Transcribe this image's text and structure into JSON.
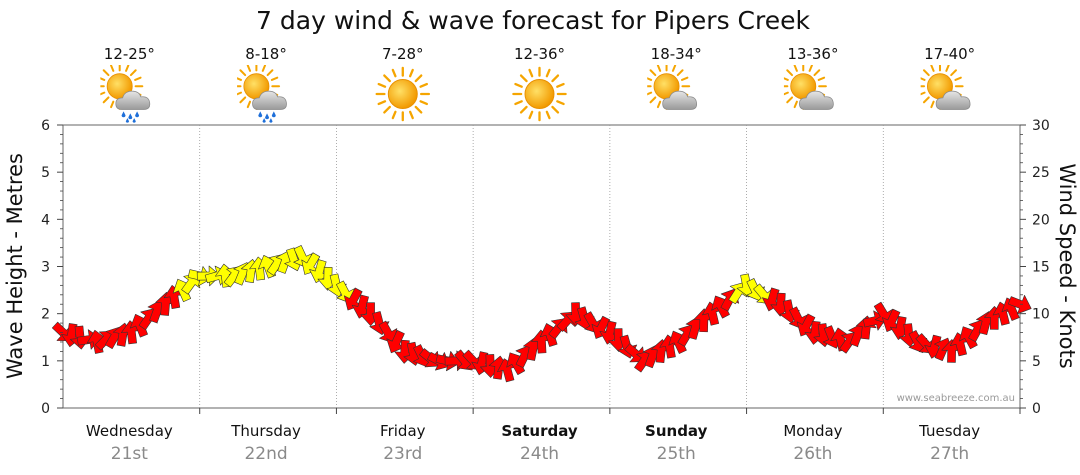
{
  "colors": {
    "strong": "#ff0000",
    "medium": "#ffff00",
    "outline": "#333333",
    "wave_shadow": "#bfbfbf",
    "grid": "#999999"
  },
  "chart_data": {
    "type": "line",
    "title": "7 day wind & wave forecast for Pipers Creek",
    "ylabel_left": "Wave Height - Metres",
    "ylabel_right": "Wind Speed - Knots",
    "ylim_left": [
      0,
      6
    ],
    "ylim_right": [
      0,
      30
    ],
    "yticks_left": [
      "0",
      "1",
      "2",
      "3",
      "4",
      "5",
      "6"
    ],
    "yticks_right": [
      "0",
      "5",
      "10",
      "15",
      "20",
      "25",
      "30"
    ],
    "grid": true,
    "watermark": "www.seabreeze.com.au",
    "days": [
      {
        "name": "Wednesday",
        "date": "21st",
        "temp": "12-25°",
        "icon": "sun-cloud-rain-icon",
        "bold": false
      },
      {
        "name": "Thursday",
        "date": "22nd",
        "temp": "8-18°",
        "icon": "sun-cloud-rain-icon",
        "bold": false
      },
      {
        "name": "Friday",
        "date": "23rd",
        "temp": "7-28°",
        "icon": "sun-icon",
        "bold": false
      },
      {
        "name": "Saturday",
        "date": "24th",
        "temp": "12-36°",
        "icon": "sun-icon",
        "bold": true
      },
      {
        "name": "Sunday",
        "date": "25th",
        "temp": "18-34°",
        "icon": "sun-cloud-icon",
        "bold": true
      },
      {
        "name": "Monday",
        "date": "26th",
        "temp": "13-36°",
        "icon": "sun-cloud-icon",
        "bold": false
      },
      {
        "name": "Tuesday",
        "date": "27th",
        "temp": "17-40°",
        "icon": "sun-cloud-icon",
        "bold": false
      }
    ],
    "wave_series": {
      "hours": [
        0,
        6,
        12,
        18,
        24,
        30,
        36,
        42,
        48,
        54,
        60,
        66,
        72,
        78,
        84,
        90,
        96,
        102,
        108,
        114,
        120,
        126,
        132,
        138,
        144,
        150,
        156,
        162,
        168
      ],
      "metres": [
        0,
        0,
        0,
        0,
        0,
        0,
        0,
        0,
        0,
        0,
        0,
        0,
        0,
        0,
        0,
        0,
        0,
        0,
        0,
        0,
        0,
        0,
        0,
        0,
        0,
        0,
        0,
        0,
        0
      ]
    },
    "wind_series": {
      "hours": [
        0,
        6,
        12,
        18,
        24,
        30,
        36,
        42,
        48,
        54,
        60,
        66,
        72,
        78,
        84,
        90,
        96,
        102,
        108,
        114,
        120,
        126,
        132,
        138,
        144,
        150,
        156,
        162,
        168
      ],
      "knots": [
        8,
        7,
        8,
        11,
        14,
        14,
        15,
        16,
        13,
        10,
        6,
        5,
        5,
        4,
        7,
        10,
        8,
        5,
        7,
        10,
        13,
        11,
        8,
        7,
        10,
        7,
        6,
        9,
        11
      ]
    }
  }
}
